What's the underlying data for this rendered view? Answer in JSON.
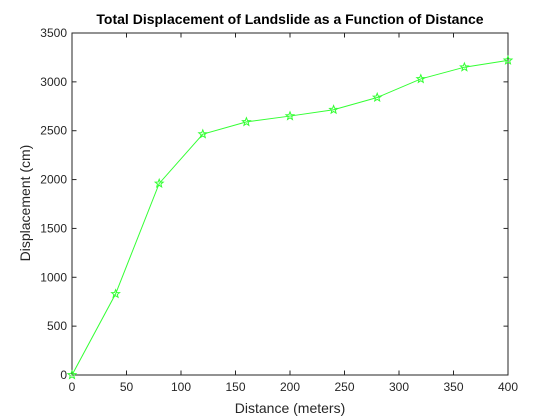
{
  "chart_data": {
    "type": "line",
    "title": "Total Displacement of Landslide as a Function of Distance",
    "xlabel": "Distance (meters)",
    "ylabel": "Displacement (cm)",
    "xlim": [
      0,
      400
    ],
    "ylim": [
      0,
      3500
    ],
    "xticks": [
      0,
      50,
      100,
      150,
      200,
      250,
      300,
      350,
      400
    ],
    "yticks": [
      0,
      500,
      1000,
      1500,
      2000,
      2500,
      3000,
      3500
    ],
    "grid": false,
    "series": [
      {
        "marker": "pentagram",
        "color": "#33ff33",
        "x": [
          0,
          40,
          80,
          120,
          160,
          200,
          240,
          280,
          320,
          360,
          400
        ],
        "y": [
          0,
          830,
          1960,
          2465,
          2590,
          2650,
          2715,
          2840,
          3030,
          3150,
          3220
        ]
      }
    ]
  }
}
